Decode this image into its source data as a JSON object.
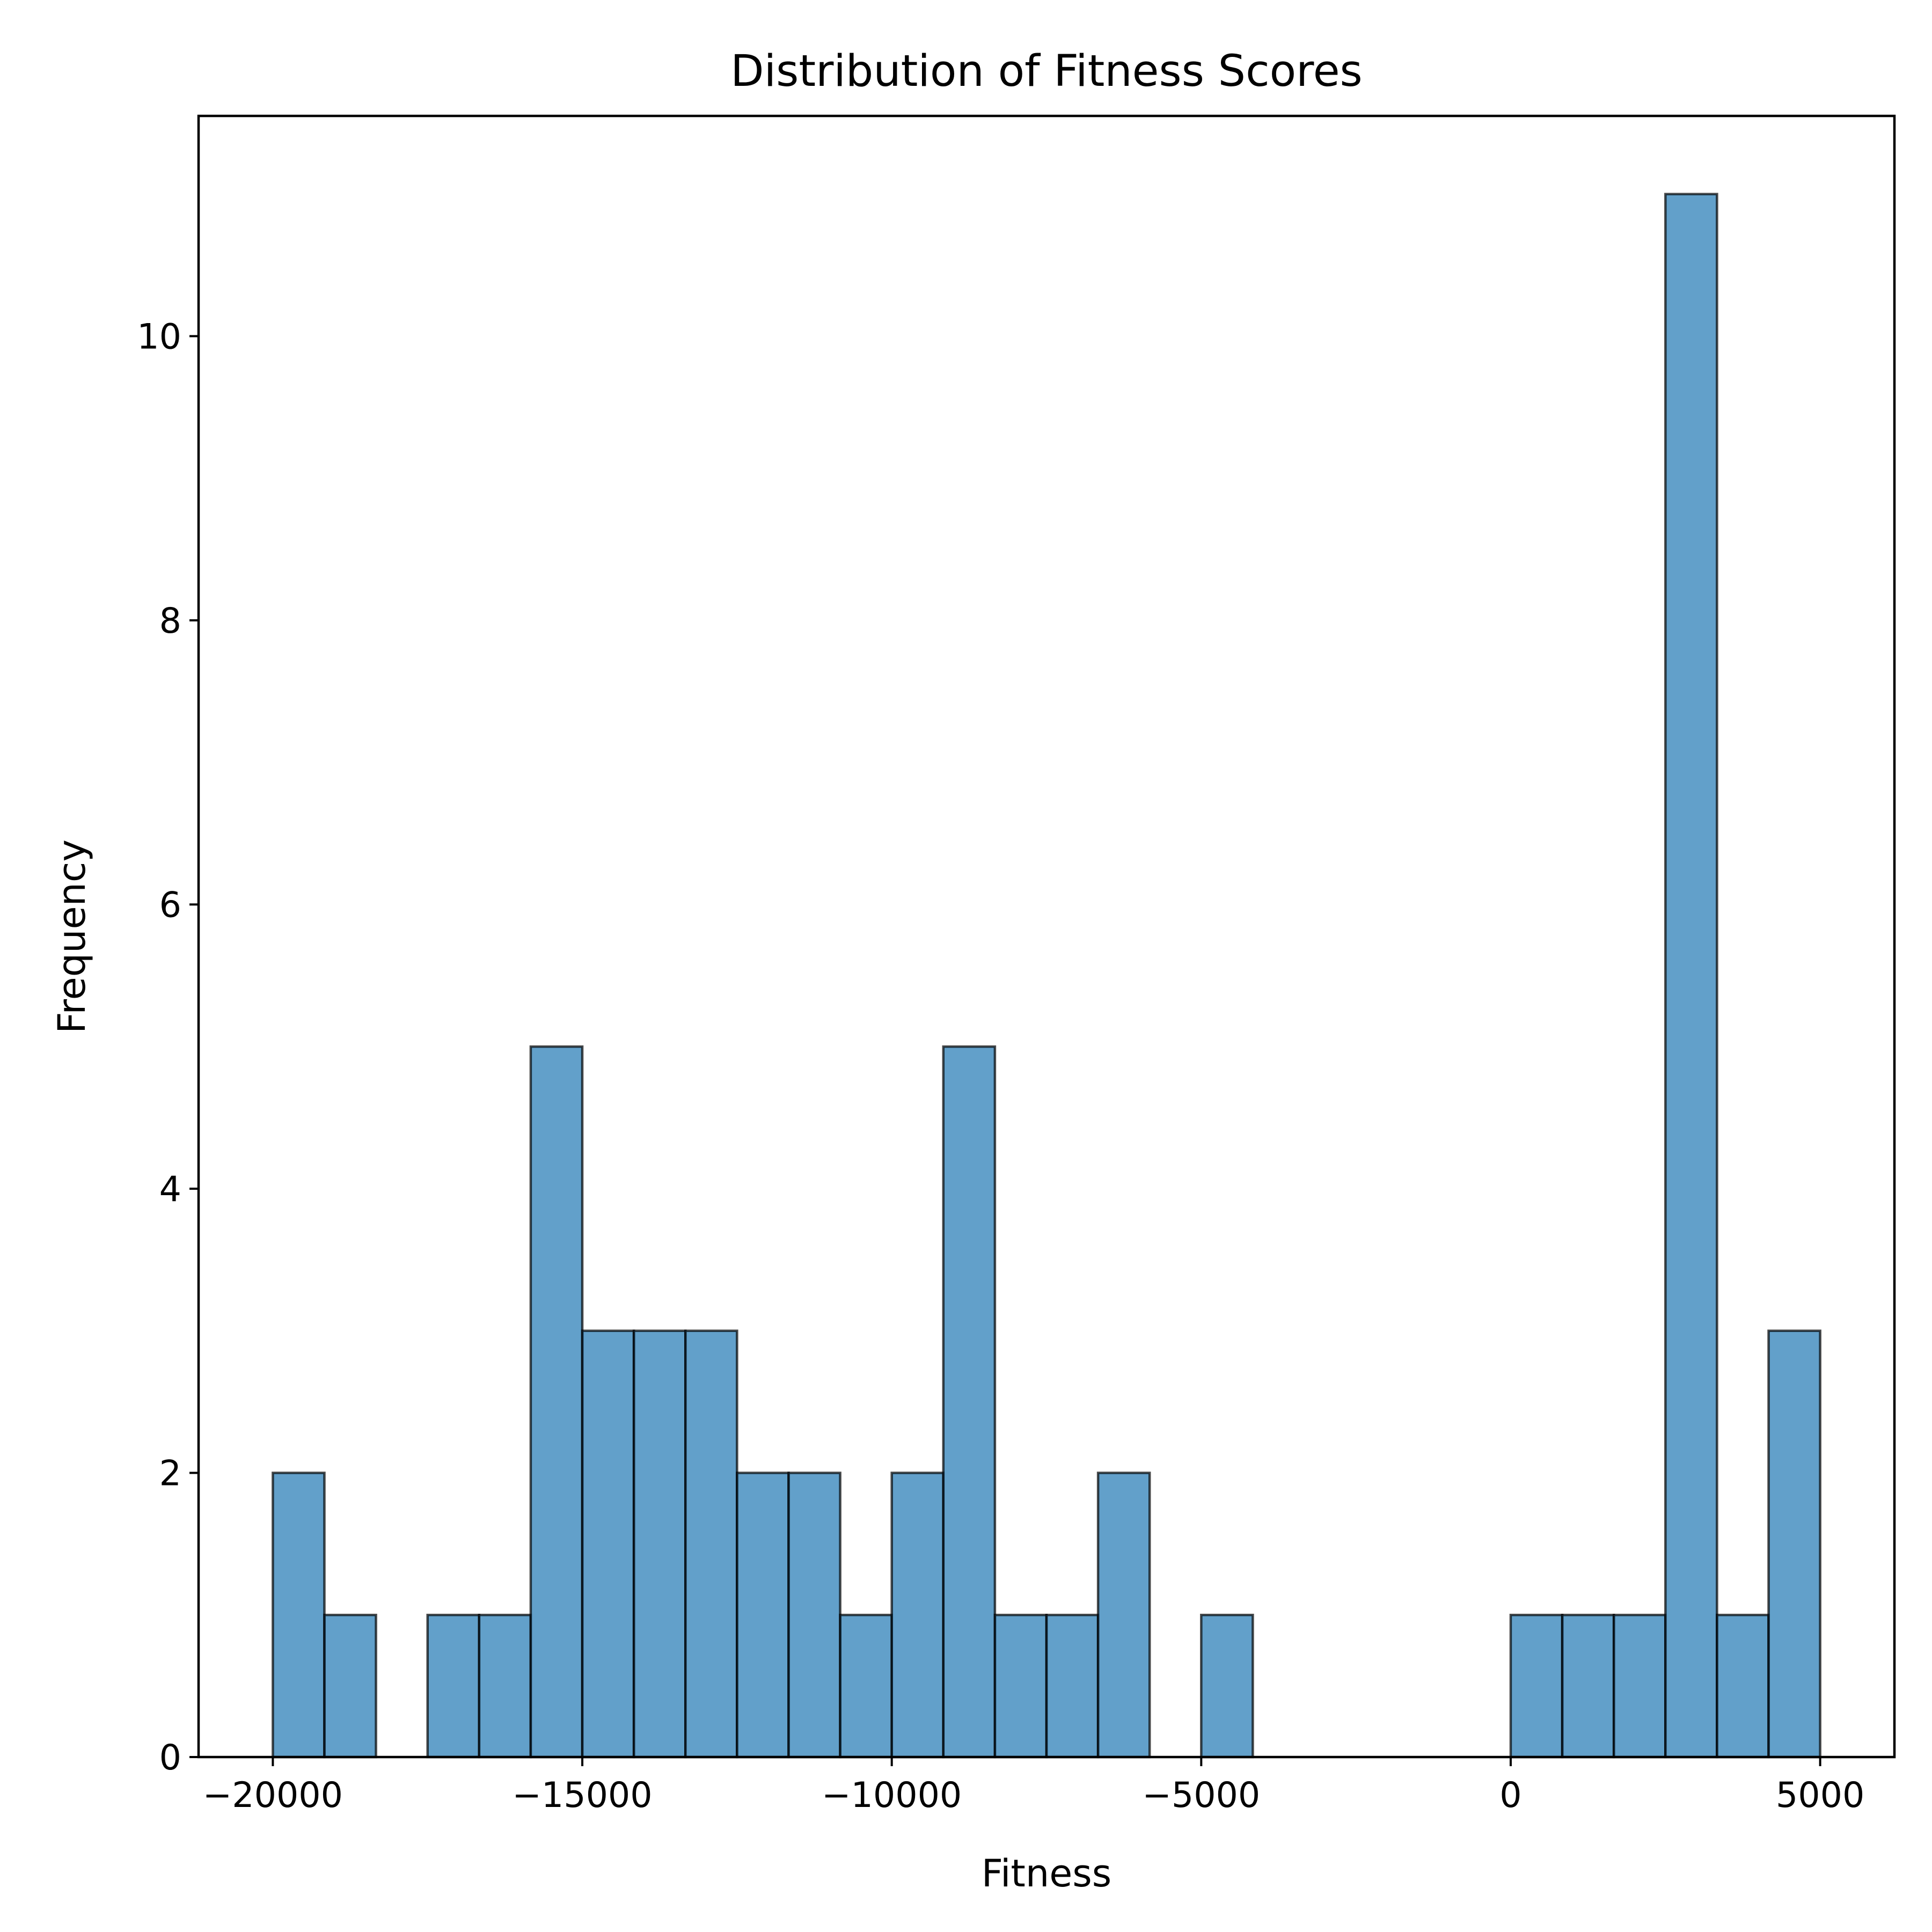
{
  "chart_data": {
    "type": "bar",
    "title": "Distribution of Fitness Scores",
    "xlabel": "Fitness",
    "ylabel": "Frequency",
    "xlim": [
      -21200,
      6200
    ],
    "ylim": [
      0,
      11.55
    ],
    "bin_edges": [
      -20000,
      -19166.67,
      -18333.33,
      -17500,
      -16666.67,
      -15833.33,
      -15000,
      -14166.67,
      -13333.33,
      -12500,
      -11666.67,
      -10833.33,
      -10000,
      -9166.67,
      -8333.33,
      -7500,
      -6666.67,
      -5833.33,
      -5000,
      -4166.67,
      -3333.33,
      -2500,
      -1666.67,
      -833.33,
      0,
      833.33,
      1666.67,
      2500,
      3333.33,
      4166.67,
      5000
    ],
    "values": [
      2,
      1,
      0,
      1,
      1,
      5,
      3,
      3,
      3,
      2,
      2,
      1,
      2,
      5,
      1,
      1,
      2,
      0,
      1,
      0,
      0,
      0,
      0,
      0,
      1,
      1,
      1,
      11,
      1,
      3
    ],
    "x_ticks": [
      -20000,
      -15000,
      -10000,
      -5000,
      0,
      5000
    ],
    "x_tick_labels": [
      "−20000",
      "−15000",
      "−10000",
      "−5000",
      "0",
      "5000"
    ],
    "y_ticks": [
      0,
      2,
      4,
      6,
      8,
      10
    ],
    "y_tick_labels": [
      "0",
      "2",
      "4",
      "6",
      "8",
      "10"
    ],
    "grid": false,
    "colors": {
      "bar_fill": "#1f77b4",
      "bar_edge": "#000000"
    }
  }
}
